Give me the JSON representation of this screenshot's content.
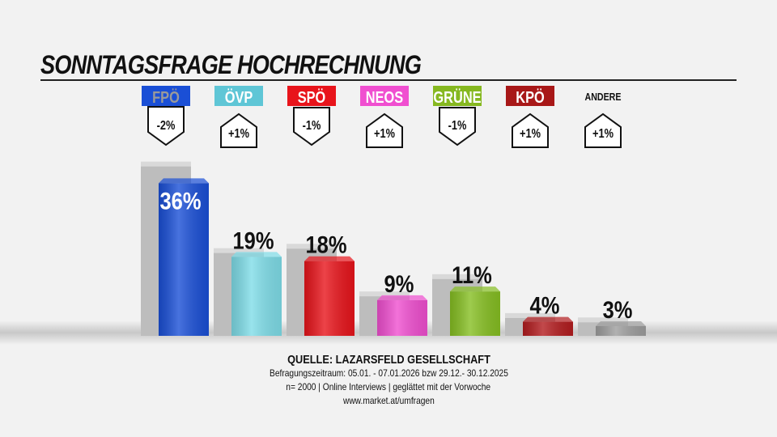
{
  "title": "SONNTAGSFRAGE HOCHRECHNUNG",
  "chart_data": {
    "type": "bar",
    "categories": [
      "FPÖ",
      "ÖVP",
      "SPÖ",
      "NEOS",
      "GRÜNE",
      "KPÖ",
      "ANDERE"
    ],
    "series": [
      {
        "values": [
          36,
          19,
          18,
          9,
          11,
          4,
          3
        ]
      },
      {
        "values": [
          38,
          18,
          19,
          8,
          12,
          3,
          2
        ]
      }
    ],
    "changes": [
      "-2%",
      "+1%",
      "-1%",
      "+1%",
      "-1%",
      "+1%",
      "+1%"
    ],
    "value_labels": [
      "36%",
      "19%",
      "18%",
      "9%",
      "11%",
      "4%",
      "3%"
    ],
    "colors": [
      "#1a4fd6",
      "#7fdde8",
      "#e8141b",
      "#f04fd0",
      "#86bf22",
      "#b31c1f",
      "#9e9e9e"
    ],
    "label_colors": [
      "#1a4fd6",
      "#5fc6d6",
      "#e8141b",
      "#f04fd0",
      "#86b820",
      "#a81818",
      "none"
    ],
    "label_text_colors": [
      "#9a9a9a",
      "#ffffff",
      "#ffffff",
      "#ffffff",
      "#ffffff",
      "#ffffff",
      "#111111"
    ],
    "ylim": [
      0,
      40
    ]
  },
  "source": {
    "title": "QUELLE: LAZARSFELD GESELLSCHAFT",
    "line1": "Befragungszeitraum:   05.01. - 07.01.2026  bzw 29.12.- 30.12.2025",
    "line2": "n= 2000 | Online Interviews | geglättet mit der Vorwoche",
    "line3": "www.market.at/umfragen"
  }
}
